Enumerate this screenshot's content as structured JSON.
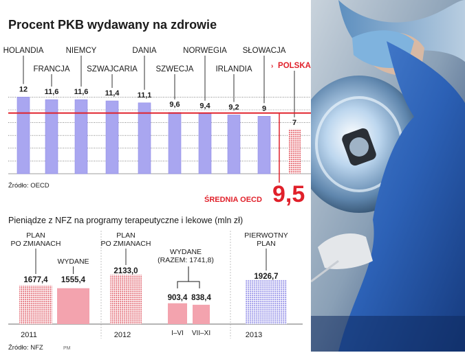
{
  "colors": {
    "bar": "#a9a6f0",
    "bar_stroke": "#8f8ae6",
    "accent_red": "#e0202a",
    "poland": "#e14b55",
    "pink": "#f3a3ae",
    "grid": "#3a3a3a",
    "text": "#1a1a1a",
    "muted": "#666666"
  },
  "chart_data": [
    {
      "type": "bar",
      "title": "Procent PKB wydawany na zdrowie",
      "categories": [
        "HOLANDIA",
        "FRANCJA",
        "NIEMCY",
        "SZWAJCARIA",
        "DANIA",
        "SZWECJA",
        "NORWEGIA",
        "IRLANDIA",
        "SŁOWACJA",
        "POLSKA"
      ],
      "value_labels": [
        "12",
        "11,6",
        "11,6",
        "11,4",
        "11,1",
        "9,6",
        "9,4",
        "9,2",
        "9",
        "7"
      ],
      "values": [
        12,
        11.6,
        11.6,
        11.4,
        11.1,
        9.6,
        9.4,
        9.2,
        9,
        7
      ],
      "highlight": "POLSKA",
      "reference_line": {
        "label": "ŚREDNIA OECD",
        "value_label": "9,5",
        "value": 9.5
      },
      "source": "Źródło: OECD",
      "grid": true
    },
    {
      "type": "bar",
      "title": "Pieniądze z NFZ na programy terapeutyczne i lekowe (mln zł)",
      "groups": [
        {
          "year": "2011",
          "items": [
            {
              "label": "PLAN\nPO ZMIANACH",
              "value_label": "1677,4",
              "value": 1677.4,
              "style": "dotted"
            },
            {
              "label": "WYDANE",
              "value_label": "1555,4",
              "value": 1555.4,
              "style": "solid"
            }
          ]
        },
        {
          "year": "2012",
          "items": [
            {
              "label": "PLAN\nPO ZMIANACH",
              "value_label": "2133,0",
              "value": 2133.0,
              "style": "dotted"
            },
            {
              "label": "I–VI",
              "value_label": "903,4",
              "value": 903.4,
              "style": "solid"
            },
            {
              "label": "VII–XI",
              "value_label": "838,4",
              "value": 838.4,
              "style": "solid"
            }
          ],
          "bracket_label": "WYDANE\n(RAZEM: 1741,8)"
        },
        {
          "year": "2013",
          "items": [
            {
              "label": "PIERWOTNY\nPLAN",
              "value_label": "1926,7",
              "value": 1926.7,
              "style": "dotted-blue"
            }
          ]
        }
      ],
      "source": "Źródło: NFZ",
      "credit": "PM"
    }
  ]
}
